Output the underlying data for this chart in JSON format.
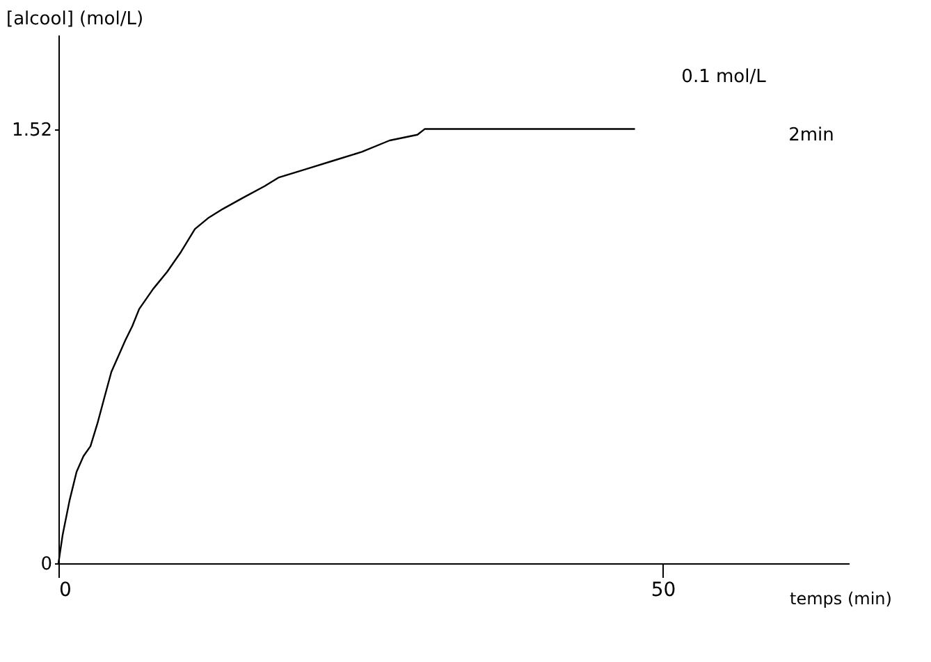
{
  "chart_data": {
    "type": "line",
    "xlabel": "temps (min)",
    "ylabel": "[alcool] (mol/L)",
    "x": [
      0,
      0.35,
      0.92,
      1.5,
      2.07,
      2.65,
      3.23,
      3.8,
      4.38,
      5.53,
      6.11,
      6.68,
      7.83,
      8.99,
      10.14,
      11.29,
      12.44,
      13.59,
      15.3,
      17.05,
      18.2,
      20.5,
      22.8,
      25.1,
      27.4,
      29.7,
      30.3,
      47.7
    ],
    "series": [
      {
        "color": "#000000",
        "values": [
          0,
          0.1,
          0.22,
          0.32,
          0.375,
          0.41,
          0.49,
          0.58,
          0.67,
          0.78,
          0.83,
          0.89,
          0.96,
          1.02,
          1.09,
          1.17,
          1.21,
          1.24,
          1.28,
          1.32,
          1.35,
          1.38,
          1.41,
          1.44,
          1.48,
          1.5,
          1.52,
          1.52
        ]
      }
    ],
    "xlim": [
      0,
      65.4
    ],
    "ylim": [
      0,
      1.85
    ],
    "xticks": [
      0,
      50
    ],
    "yticks": [
      0,
      1.52
    ],
    "grid": false,
    "legend": false,
    "marker": "none",
    "line_style": "solid",
    "annotations": [
      "0.1 mol/L",
      "2min"
    ]
  }
}
